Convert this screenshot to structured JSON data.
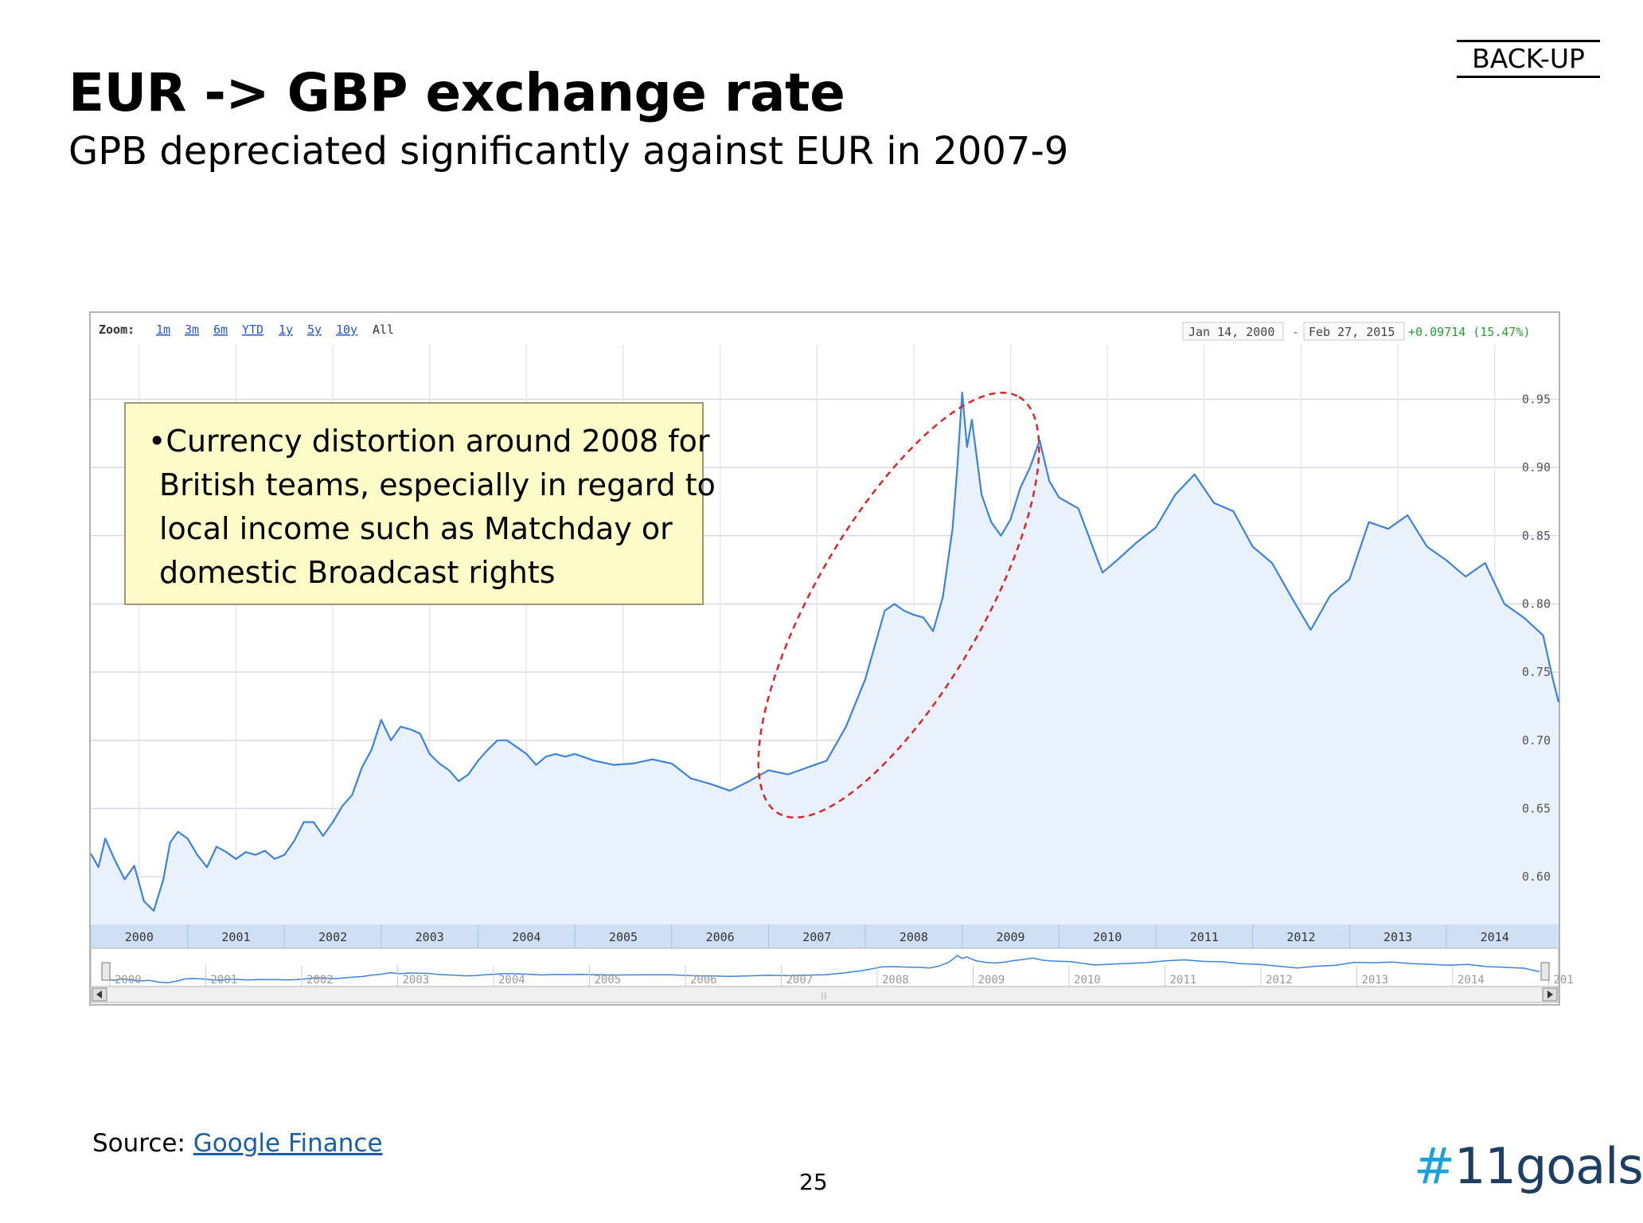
{
  "header": {
    "backup_label": "BACK-UP",
    "title": "EUR -> GBP exchange rate",
    "subtitle": "GPB depreciated significantly against EUR in 2007-9"
  },
  "callout": {
    "lines": [
      "•Currency distortion around 2008 for",
      "British teams, especially in regard to",
      "local income such as Matchday or",
      "domestic Broadcast rights"
    ]
  },
  "footer": {
    "source_prefix": "Source: ",
    "source_link": "Google Finance",
    "page_number": "25",
    "logo_hash": "#",
    "logo_text": "11goals"
  },
  "colors": {
    "line": "#3f82d6",
    "area": "#e8f1fc",
    "highlight": "#d9262c",
    "axis_band": "#cfe0f5",
    "grid": "#d9d9e6",
    "positive": "#2e9a3a",
    "link": "#2a55c8"
  },
  "chart_data": {
    "type": "line",
    "title": "EUR -> GBP exchange rate",
    "source": "Google Finance",
    "zoom": {
      "label": "Zoom:",
      "options": [
        "1m",
        "3m",
        "6m",
        "YTD",
        "1y",
        "5y",
        "10y",
        "All"
      ],
      "selected": "All"
    },
    "date_range": {
      "start": "Jan 14, 2000",
      "separator": "-",
      "end": "Feb 27, 2015"
    },
    "change": "+0.09714 (15.47%)",
    "ylim": [
      0.565,
      0.99
    ],
    "yticks": [
      "0.60",
      "0.65",
      "0.70",
      "0.75",
      "0.80",
      "0.85",
      "0.90",
      "0.95"
    ],
    "x_tick_labels": [
      "2000",
      "2001",
      "2002",
      "2003",
      "2004",
      "2005",
      "2006",
      "2007",
      "2008",
      "2009",
      "2010",
      "2011",
      "2012",
      "2013",
      "2014"
    ],
    "navigator_labels": [
      "2000",
      "2001",
      "2002",
      "2003",
      "2004",
      "2005",
      "2006",
      "2007",
      "2008",
      "2009",
      "2010",
      "2011",
      "2012",
      "2013",
      "2014",
      "201"
    ],
    "series": [
      {
        "name": "EUR/GBP",
        "x": [
          2000.0,
          2000.08,
          2000.15,
          2000.25,
          2000.35,
          2000.45,
          2000.55,
          2000.65,
          2000.75,
          2000.82,
          2000.9,
          2001.0,
          2001.1,
          2001.2,
          2001.3,
          2001.4,
          2001.5,
          2001.6,
          2001.7,
          2001.8,
          2001.9,
          2002.0,
          2002.1,
          2002.2,
          2002.3,
          2002.4,
          2002.5,
          2002.6,
          2002.7,
          2002.8,
          2002.9,
          2003.0,
          2003.1,
          2003.2,
          2003.3,
          2003.4,
          2003.5,
          2003.6,
          2003.7,
          2003.8,
          2003.9,
          2004.0,
          2004.1,
          2004.2,
          2004.3,
          2004.4,
          2004.5,
          2004.6,
          2004.7,
          2004.8,
          2004.9,
          2005.0,
          2005.2,
          2005.4,
          2005.6,
          2005.8,
          2006.0,
          2006.2,
          2006.4,
          2006.6,
          2006.8,
          2007.0,
          2007.2,
          2007.4,
          2007.6,
          2007.8,
          2008.0,
          2008.1,
          2008.2,
          2008.3,
          2008.4,
          2008.5,
          2008.6,
          2008.7,
          2008.8,
          2008.85,
          2008.9,
          2008.95,
          2009.0,
          2009.05,
          2009.1,
          2009.2,
          2009.3,
          2009.4,
          2009.5,
          2009.6,
          2009.7,
          2009.8,
          2009.9,
          2010.0,
          2010.2,
          2010.4,
          2010.45,
          2010.6,
          2010.8,
          2011.0,
          2011.2,
          2011.4,
          2011.6,
          2011.8,
          2012.0,
          2012.2,
          2012.4,
          2012.6,
          2012.8,
          2013.0,
          2013.2,
          2013.4,
          2013.6,
          2013.8,
          2014.0,
          2014.2,
          2014.4,
          2014.6,
          2014.8,
          2015.0,
          2015.1,
          2015.16
        ],
        "values": [
          0.617,
          0.607,
          0.628,
          0.612,
          0.598,
          0.608,
          0.582,
          0.575,
          0.598,
          0.625,
          0.633,
          0.628,
          0.616,
          0.607,
          0.622,
          0.618,
          0.613,
          0.618,
          0.616,
          0.619,
          0.613,
          0.616,
          0.626,
          0.64,
          0.64,
          0.63,
          0.64,
          0.652,
          0.66,
          0.68,
          0.693,
          0.715,
          0.7,
          0.71,
          0.708,
          0.705,
          0.69,
          0.683,
          0.678,
          0.67,
          0.675,
          0.685,
          0.693,
          0.7,
          0.7,
          0.695,
          0.69,
          0.682,
          0.688,
          0.69,
          0.688,
          0.69,
          0.685,
          0.682,
          0.683,
          0.686,
          0.683,
          0.672,
          0.668,
          0.663,
          0.67,
          0.678,
          0.675,
          0.68,
          0.685,
          0.71,
          0.745,
          0.77,
          0.795,
          0.8,
          0.795,
          0.792,
          0.79,
          0.78,
          0.805,
          0.83,
          0.855,
          0.9,
          0.955,
          0.915,
          0.935,
          0.88,
          0.86,
          0.85,
          0.862,
          0.885,
          0.9,
          0.92,
          0.89,
          0.878,
          0.87,
          0.832,
          0.823,
          0.832,
          0.845,
          0.856,
          0.88,
          0.895,
          0.874,
          0.868,
          0.842,
          0.83,
          0.805,
          0.781,
          0.806,
          0.818,
          0.86,
          0.855,
          0.865,
          0.842,
          0.832,
          0.82,
          0.83,
          0.8,
          0.79,
          0.777,
          0.745,
          0.728
        ]
      }
    ]
  }
}
